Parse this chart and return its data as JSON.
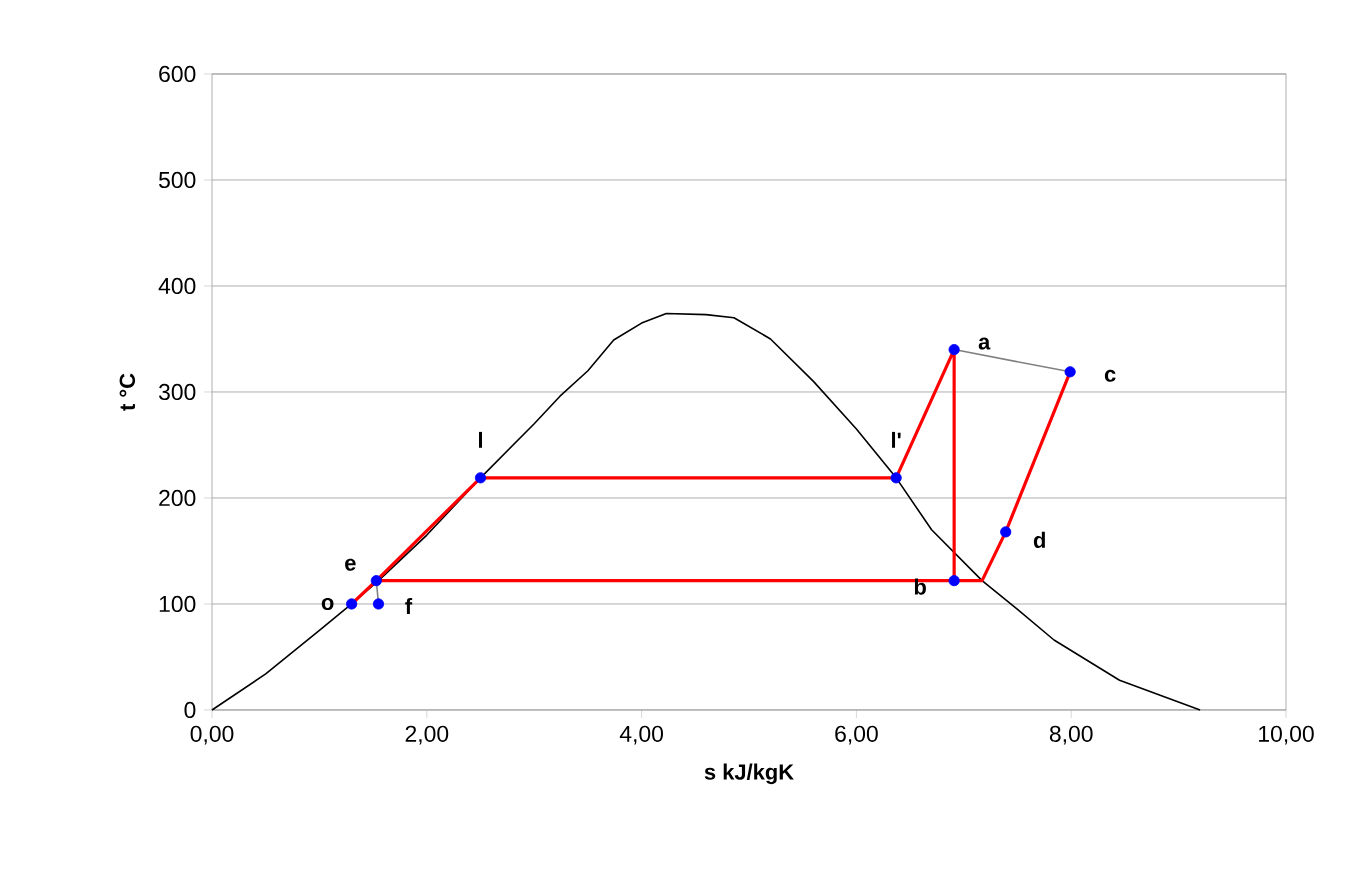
{
  "chart_data": {
    "type": "line",
    "xlabel": "s kJ/kgK",
    "ylabel": "t °C",
    "xlim": [
      0,
      10
    ],
    "ylim": [
      0,
      600
    ],
    "xticks": [
      {
        "value": 0,
        "label": "0,00"
      },
      {
        "value": 2,
        "label": "2,00"
      },
      {
        "value": 4,
        "label": "4,00"
      },
      {
        "value": 6,
        "label": "6,00"
      },
      {
        "value": 8,
        "label": "8,00"
      },
      {
        "value": 10,
        "label": "10,00"
      }
    ],
    "yticks": [
      0,
      100,
      200,
      300,
      400,
      500,
      600
    ],
    "grid": "y",
    "series": [
      {
        "color": "#000000",
        "marker": "none",
        "x": [
          0,
          0.5,
          1.0,
          1.3,
          1.55,
          2.0,
          2.5,
          3.0,
          3.24,
          3.5,
          3.74,
          4.0,
          4.23,
          4.6,
          4.86,
          5.2,
          5.6,
          6.0,
          6.37,
          6.7,
          7.17,
          7.5,
          7.84,
          8.45,
          9.2
        ],
        "values": [
          0,
          34,
          75,
          100,
          122,
          165,
          219,
          270,
          296,
          320,
          349,
          365,
          374,
          373,
          370,
          350,
          310,
          265,
          219,
          170,
          122,
          95,
          66,
          28,
          0
        ]
      },
      {
        "color": "#ff0000",
        "marker": "none",
        "x": [
          1.3,
          1.53,
          2.5,
          6.37,
          6.91,
          6.91
        ],
        "values": [
          100,
          122,
          219,
          219,
          340,
          122
        ]
      },
      {
        "color": "#ff0000",
        "marker": "none",
        "x": [
          1.53,
          7.17,
          7.39,
          7.99
        ],
        "values": [
          122,
          122,
          168,
          319
        ]
      },
      {
        "color": "#808080",
        "marker": "none",
        "x": [
          6.91,
          7.99
        ],
        "values": [
          340,
          319
        ]
      },
      {
        "color": "#808080",
        "marker": "none",
        "x": [
          1.53,
          1.55
        ],
        "values": [
          122,
          100
        ]
      },
      {
        "type": "scatter",
        "color": "#0000ff",
        "marker": "circle",
        "x": [
          1.3,
          1.55,
          1.53,
          2.5,
          6.37,
          6.91,
          7.99,
          7.39,
          6.91
        ],
        "values": [
          100,
          100,
          122,
          219,
          219,
          340,
          319,
          168,
          122
        ]
      }
    ],
    "annotations": [
      {
        "text": "o",
        "x": 1.3,
        "y": 100
      },
      {
        "text": "f",
        "x": 1.55,
        "y": 100
      },
      {
        "text": "e",
        "x": 1.53,
        "y": 122
      },
      {
        "text": "l",
        "x": 2.5,
        "y": 219
      },
      {
        "text": "l'",
        "x": 6.37,
        "y": 219
      },
      {
        "text": "a",
        "x": 6.91,
        "y": 340
      },
      {
        "text": "c",
        "x": 7.99,
        "y": 319
      },
      {
        "text": "d",
        "x": 7.39,
        "y": 168
      },
      {
        "text": "b",
        "x": 6.91,
        "y": 122
      }
    ]
  }
}
